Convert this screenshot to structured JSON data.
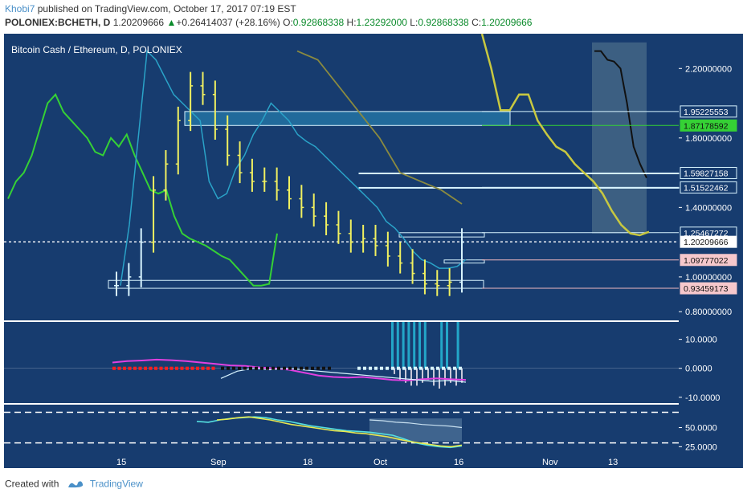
{
  "header": {
    "author": "Khobi7",
    "published_text": "published on TradingView.com, October 17, 2017 07:19 EST",
    "symbol": "POLONIEX:BCHETH, D",
    "last": "1.20209666",
    "change_arrow": "▲",
    "change": "+0.26414037 (+28.16%)",
    "o_label": "O:",
    "o": "0.92868338",
    "h_label": "H:",
    "h": "1.23292000",
    "l_label": "L:",
    "l": "0.92868338",
    "c_label": "C:",
    "c": "1.20209666"
  },
  "footer": {
    "created_with": "Created with",
    "brand": "TradingView"
  },
  "colors": {
    "background": "#173c6f",
    "candle": "#f0f060",
    "candle_light": "#d8f4ff",
    "green_line": "#35d135",
    "cyan_line": "#2aa3c8",
    "olive_line": "#8a8a40",
    "kumo_line": "#c8c840"
  },
  "chart_data": [
    {
      "type": "line",
      "panel": "price",
      "title": "Bitcoin Cash / Ethereum, D, POLONIEX",
      "ylim": [
        0.75,
        2.4
      ],
      "y_ticks": [
        "2.20000000",
        "1.80000000",
        "1.40000000",
        "1.00000000",
        "0.80000000"
      ],
      "y_tick_values": [
        2.2,
        1.8,
        1.4,
        1.0,
        0.8
      ],
      "x_tick_labels": [
        "15",
        "Sep",
        "18",
        "Oct",
        "16",
        "Nov",
        "13"
      ],
      "price_labels": [
        {
          "text": "1.95225553",
          "value": 1.95225553,
          "style": "box"
        },
        {
          "text": "1.87178592",
          "value": 1.87178592,
          "style": "green"
        },
        {
          "text": "1.59827158",
          "value": 1.59827158,
          "style": "box"
        },
        {
          "text": "1.51522462",
          "value": 1.51522462,
          "style": "box"
        },
        {
          "text": "1.25467272",
          "value": 1.25467272,
          "style": "box"
        },
        {
          "text": "1.20209666",
          "value": 1.20209666,
          "style": "last"
        },
        {
          "text": "1.09777022",
          "value": 1.09777022,
          "style": "pink"
        },
        {
          "text": "0.93459173",
          "value": 0.93459173,
          "style": "pink"
        }
      ],
      "series": [
        {
          "values": [
            1.45,
            1.55,
            1.6,
            1.7,
            1.85,
            2.0,
            2.05,
            1.95,
            1.9,
            1.85,
            1.8,
            1.72,
            1.7,
            1.8,
            1.75,
            1.82,
            1.7,
            1.6,
            1.5,
            1.48,
            1.5,
            1.35,
            1.25,
            1.22,
            1.2,
            1.18,
            1.15,
            1.12,
            1.1,
            1.05,
            1.0,
            0.95,
            0.95,
            0.96,
            1.25
          ]
        },
        {
          "values": [
            0.95,
            1.3,
            1.8,
            2.3,
            2.25,
            2.15,
            2.05,
            2.0,
            1.95,
            1.9,
            1.55,
            1.45,
            1.48,
            1.62,
            1.7,
            1.82,
            1.9,
            2.0,
            1.95,
            1.9,
            1.82,
            1.78,
            1.75,
            1.7,
            1.65,
            1.6,
            1.55,
            1.5,
            1.45,
            1.4,
            1.32,
            1.28,
            1.22,
            1.15,
            1.1,
            1.08,
            1.05,
            1.05,
            1.06,
            1.1
          ]
        },
        {
          "values": [
            2.3,
            2.25,
            2.1,
            1.95,
            1.8,
            1.6,
            1.55,
            1.5,
            1.42
          ]
        },
        {
          "values": [
            2.4,
            2.2,
            1.96,
            1.96,
            2.05,
            2.05,
            1.9,
            1.82,
            1.75,
            1.72,
            1.65,
            1.6,
            1.55,
            1.48,
            1.38,
            1.3,
            1.25,
            1.24,
            1.26
          ]
        },
        {
          "values": [
            2.3,
            2.3,
            2.25,
            2.24,
            2.2,
            2.0,
            1.75,
            1.65,
            1.57
          ]
        },
        {
          "values": [
            0.95,
            1.0,
            1.2,
            1.5,
            1.65,
            1.9,
            2.1,
            2.05,
            1.85,
            1.7,
            1.6,
            1.55,
            1.55,
            1.5,
            1.45,
            1.4,
            1.35,
            1.3,
            1.25,
            1.2,
            1.22,
            1.18,
            1.12,
            1.08,
            1.02,
            0.96,
            0.95,
            0.97,
            1.2
          ]
        }
      ]
    },
    {
      "type": "bar",
      "panel": "histogram",
      "ylim": [
        -12,
        16
      ],
      "y_ticks": [
        "10.0000",
        "0.0000",
        "-10.0000"
      ],
      "y_tick_values": [
        10,
        0,
        -10
      ],
      "series": [
        {
          "values": [
            16,
            16,
            16,
            16,
            16,
            16,
            16,
            0,
            0,
            16,
            16,
            0,
            16
          ]
        },
        {
          "values": [
            -2,
            -4,
            -5,
            -6,
            -6,
            -5,
            -4,
            -6,
            -7,
            -6,
            -5,
            -6,
            -5
          ]
        },
        {
          "values": [
            2,
            2.5,
            2.7,
            3,
            2.8,
            2.5,
            2,
            1.5,
            1,
            0.8,
            0.3,
            0,
            -0.5,
            -1.5,
            -2.5,
            -3,
            -3.2,
            -3,
            -3.5,
            -4,
            -4.2,
            -3.8,
            -3.5,
            -3.8,
            -4
          ]
        },
        {
          "values": [
            -3.5,
            -1,
            0,
            -0.5,
            0,
            -0.5,
            -1,
            -1.5,
            -2,
            -2.5,
            -3,
            -3.5,
            -4,
            -4.5,
            -4.2,
            -4.8
          ]
        }
      ]
    },
    {
      "type": "line",
      "panel": "oscillator",
      "ylim": [
        18,
        80
      ],
      "y_ticks": [
        "50.0000",
        "25.0000"
      ],
      "y_tick_values": [
        50,
        25
      ],
      "reference_levels": [
        70,
        30
      ],
      "series": [
        {
          "values": [
            58,
            57,
            60,
            62,
            63,
            64,
            63,
            60,
            58,
            55,
            52,
            50,
            48,
            46,
            45,
            44,
            42,
            40,
            35,
            30,
            27,
            25,
            24,
            26
          ]
        },
        {
          "values": [
            60,
            61,
            63,
            64,
            62,
            60,
            57,
            54,
            52,
            50,
            48,
            46,
            45,
            43,
            42,
            40,
            38,
            35,
            32,
            30,
            28,
            26,
            25,
            27
          ]
        },
        {
          "values": [
            60,
            59,
            57,
            56,
            54,
            53,
            52,
            50
          ]
        }
      ]
    }
  ]
}
